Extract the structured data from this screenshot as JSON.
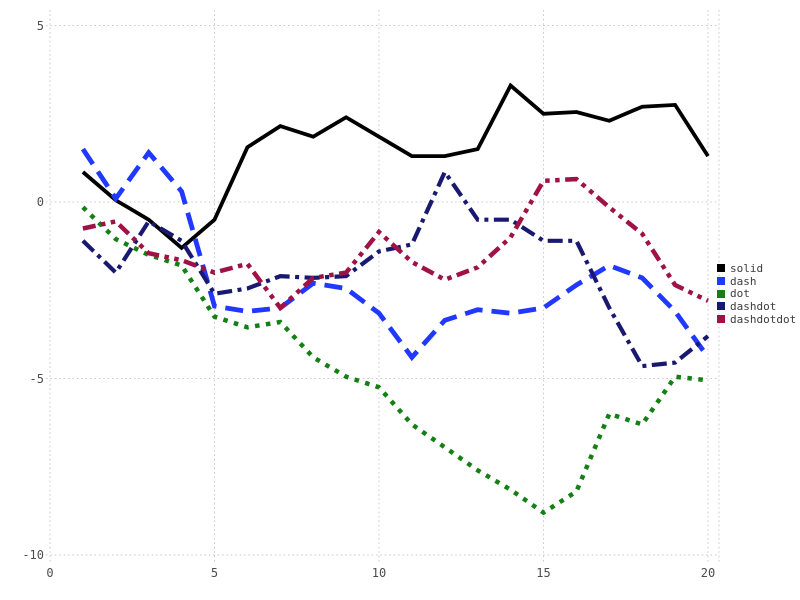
{
  "chart_data": {
    "type": "line",
    "title": "",
    "xlabel": "",
    "ylabel": "",
    "x": [
      1,
      2,
      3,
      4,
      5,
      6,
      7,
      8,
      9,
      10,
      11,
      12,
      13,
      14,
      15,
      16,
      17,
      18,
      19,
      20
    ],
    "series": [
      {
        "name": "solid",
        "line_style": "solid",
        "color": "#000000",
        "values": [
          0.85,
          0.05,
          -0.5,
          -1.3,
          -0.5,
          1.55,
          2.15,
          1.85,
          2.4,
          1.85,
          1.3,
          1.3,
          1.5,
          3.3,
          2.5,
          2.55,
          2.3,
          2.7,
          2.75,
          1.3
        ]
      },
      {
        "name": "dash",
        "line_style": "dash",
        "color": "#2038ff",
        "values": [
          1.5,
          0.1,
          1.4,
          0.3,
          -2.95,
          -3.1,
          -3.0,
          -2.3,
          -2.45,
          -3.15,
          -4.4,
          -3.35,
          -3.05,
          -3.15,
          -3.0,
          -2.35,
          -1.8,
          -2.15,
          -3.1,
          -4.4
        ]
      },
      {
        "name": "dot",
        "line_style": "dot",
        "color": "#148014",
        "values": [
          -0.15,
          -1.05,
          -1.5,
          -1.8,
          -3.25,
          -3.55,
          -3.4,
          -4.4,
          -4.95,
          -5.25,
          -6.3,
          -6.95,
          -7.6,
          -8.15,
          -8.8,
          -8.2,
          -6.0,
          -6.3,
          -4.95,
          -5.05
        ]
      },
      {
        "name": "dashdot",
        "line_style": "dashdot",
        "color": "#191970",
        "values": [
          -1.1,
          -2.0,
          -0.55,
          -1.1,
          -2.6,
          -2.45,
          -2.1,
          -2.15,
          -2.1,
          -1.4,
          -1.2,
          0.85,
          -0.5,
          -0.5,
          -1.1,
          -1.1,
          -3.0,
          -4.65,
          -4.55,
          -3.8
        ]
      },
      {
        "name": "dashdotdot",
        "line_style": "dashdotdot",
        "color": "#a01245",
        "values": [
          -0.75,
          -0.55,
          -1.45,
          -1.65,
          -2.0,
          -1.75,
          -3.0,
          -2.15,
          -2.0,
          -0.85,
          -1.7,
          -2.2,
          -1.85,
          -1.0,
          0.6,
          0.65,
          -0.15,
          -0.9,
          -2.35,
          -2.8
        ]
      }
    ],
    "x_ticks": [
      0,
      5,
      10,
      15,
      20
    ],
    "y_ticks": [
      5,
      0,
      -5,
      -10
    ],
    "xlim": [
      0,
      20.3
    ],
    "ylim": [
      -10.6,
      5.3
    ],
    "grid": true,
    "grid_style": "dotted",
    "legend_position": "right",
    "legend": [
      "solid",
      "dash",
      "dot",
      "dashdot",
      "dashdotdot"
    ]
  },
  "colors": {
    "background": "#ffffff",
    "grid": "#c9c9d9",
    "tick_text": "#4d4d4d",
    "legend_text": "#3c3c3c"
  }
}
